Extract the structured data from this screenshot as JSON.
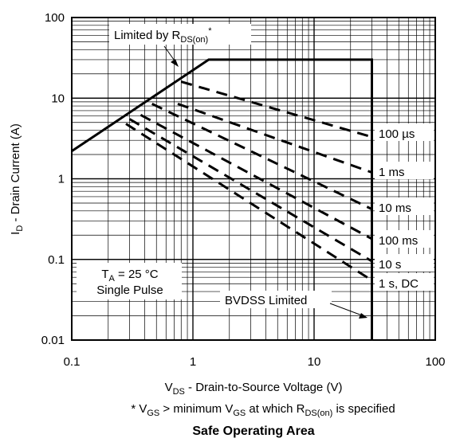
{
  "chart_data": {
    "type": "line",
    "x_scale": "log",
    "y_scale": "log",
    "xlim": [
      0.1,
      100
    ],
    "ylim": [
      0.01,
      100
    ],
    "grid": true,
    "x_ticks": [
      "0.1",
      "1",
      "10",
      "100"
    ],
    "y_ticks": [
      "0.01",
      "0.1",
      "1",
      "10",
      "100"
    ],
    "xlabel": {
      "main": "V",
      "sub": "DS",
      "rest": " - Drain-to-Source Voltage (V)"
    },
    "ylabel": {
      "main": "I",
      "sub": "D",
      "rest": " - Drain Current (A)"
    },
    "footnote": {
      "p1": "* V",
      "s1": "GS",
      "p2": " > minimum V",
      "s2": "GS",
      "p3": " at which R",
      "s3": "DS(on)",
      "p4": " is specified"
    },
    "title": "Safe Operating Area",
    "conditions": {
      "line1_main": "T",
      "line1_sub": "A",
      "line1_rest": " = 25 °C",
      "line2": "Single Pulse"
    },
    "annotations": {
      "rdson": {
        "main": "Limited by R",
        "sub": "DS(on)",
        "sup": "*"
      },
      "bvdss": "BVDSS Limited"
    },
    "limit_envelope": [
      [
        0.1,
        2.2
      ],
      [
        1.35,
        30
      ],
      [
        30,
        30
      ],
      [
        30,
        0.01
      ]
    ],
    "series": [
      {
        "name": "100 µs",
        "style": "dashed",
        "points": [
          [
            0.8,
            16
          ],
          [
            30,
            3.3
          ]
        ]
      },
      {
        "name": "1 ms",
        "style": "dashed",
        "points": [
          [
            0.75,
            8.5
          ],
          [
            30,
            1.2
          ]
        ]
      },
      {
        "name": "10 ms",
        "style": "dashed",
        "points": [
          [
            0.46,
            8.5
          ],
          [
            30,
            0.42
          ]
        ]
      },
      {
        "name": "100 ms",
        "style": "dashed",
        "points": [
          [
            0.37,
            6.2
          ],
          [
            30,
            0.18
          ]
        ]
      },
      {
        "name": "10 s",
        "style": "dashed",
        "points": [
          [
            0.3,
            5.5
          ],
          [
            30,
            0.095
          ]
        ]
      },
      {
        "name": "1 s, DC",
        "style": "dashed",
        "points": [
          [
            0.28,
            4.8
          ],
          [
            30,
            0.055
          ]
        ]
      }
    ]
  }
}
